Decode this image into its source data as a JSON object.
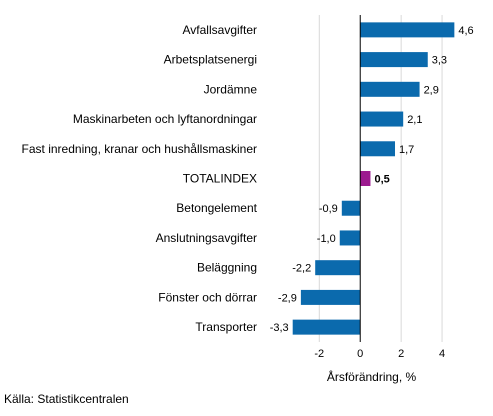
{
  "chart_data": {
    "type": "bar",
    "orientation": "horizontal",
    "categories": [
      "Avfallsavgifter",
      "Arbetsplatsenergi",
      "Jordämne",
      "Maskinarbeten och lyftanordningar",
      "Fast inredning, kranar och hushållsmaskiner",
      "TOTALINDEX",
      "Betongelement",
      "Anslutningsavgifter",
      "Beläggning",
      "Fönster och dörrar",
      "Transporter"
    ],
    "values": [
      4.6,
      3.3,
      2.9,
      2.1,
      1.7,
      0.5,
      -0.9,
      -1.0,
      -2.2,
      -2.9,
      -3.3
    ],
    "value_labels": [
      "4,6",
      "3,3",
      "2,9",
      "2,1",
      "1,7",
      "0,5",
      "-0,9",
      "-1,0",
      "-2,2",
      "-2,9",
      "-3,3"
    ],
    "highlight_category": "TOTALINDEX",
    "xlabel": "Årsförändring, %",
    "xlim": [
      -4.8,
      6.0
    ],
    "xticks": [
      -2,
      0,
      2,
      4
    ],
    "xtick_labels": [
      "-2",
      "0",
      "2",
      "4"
    ],
    "grid": "vertical",
    "colors": {
      "bar": "#1f77b4",
      "bar_default": "#0b6aad",
      "bar_highlight": "#9c1a8f",
      "grid": "#d9d9d9",
      "axis": "#000000"
    }
  },
  "source": "Källa: Statistikcentralen"
}
